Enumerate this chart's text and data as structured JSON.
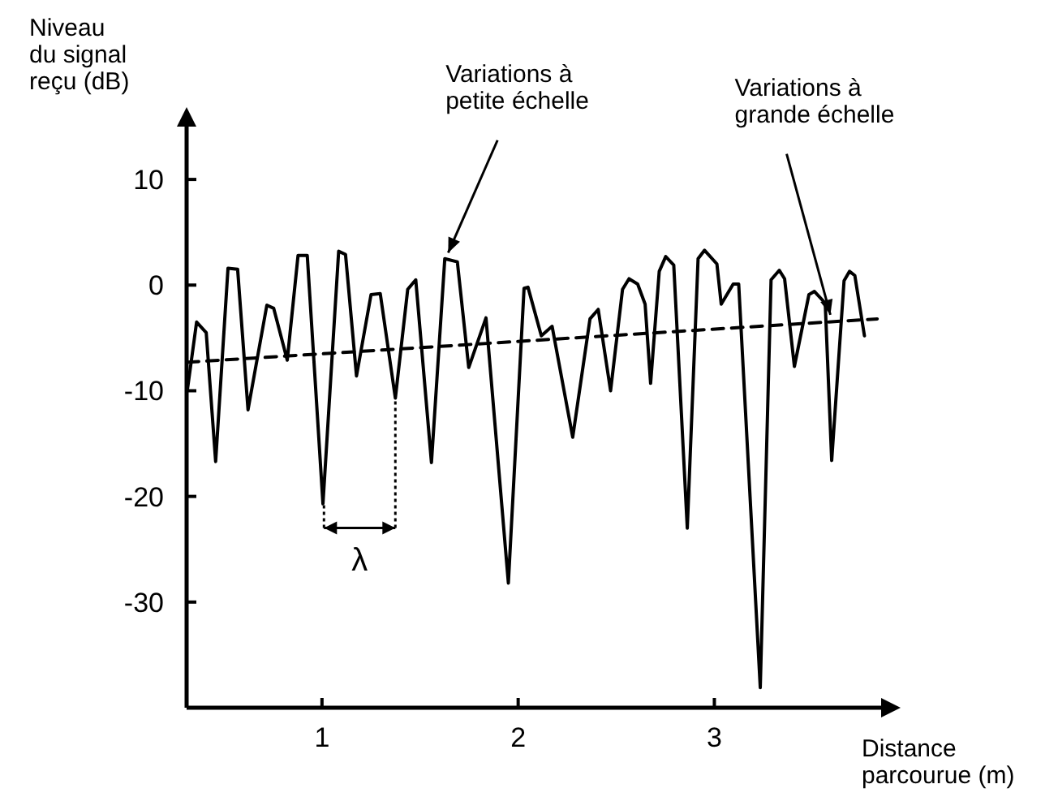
{
  "chart_data": {
    "type": "line",
    "xlabel": "Distance\nparcourue (m)",
    "ylabel": "Niveau\ndu signal\nreçu (dB)",
    "xlim": [
      0.31,
      3.85
    ],
    "ylim": [
      -40,
      15
    ],
    "xticks": [
      1,
      2,
      3
    ],
    "yticks": [
      10,
      0,
      -10,
      -20,
      -30
    ],
    "grid": false,
    "marker": "none",
    "series": [
      {
        "color": "#000000",
        "line_style": "solid",
        "x": [
          0.314,
          0.361,
          0.41,
          0.458,
          0.521,
          0.57,
          0.623,
          0.719,
          0.754,
          0.823,
          0.878,
          0.925,
          1.005,
          1.085,
          1.12,
          1.176,
          1.25,
          1.297,
          1.374,
          1.437,
          1.478,
          1.558,
          1.626,
          1.69,
          1.748,
          1.836,
          1.95,
          2.03,
          2.05,
          2.118,
          2.173,
          2.278,
          2.366,
          2.408,
          2.471,
          2.532,
          2.565,
          2.609,
          2.647,
          2.675,
          2.719,
          2.752,
          2.793,
          2.862,
          2.917,
          2.95,
          3.013,
          3.035,
          3.096,
          3.124,
          3.234,
          3.289,
          3.331,
          3.358,
          3.408,
          3.482,
          3.51,
          3.565,
          3.598,
          3.661,
          3.689,
          3.716,
          3.765
        ],
        "values": [
          -9.9,
          -3.5,
          -4.5,
          -16.7,
          1.6,
          1.5,
          -11.8,
          -1.9,
          -2.2,
          -7.1,
          2.8,
          2.8,
          -20.7,
          3.2,
          2.9,
          -8.6,
          -0.9,
          -0.8,
          -10.7,
          -0.4,
          0.5,
          -16.8,
          2.5,
          2.2,
          -7.8,
          -3.1,
          -28.2,
          -0.3,
          -0.2,
          -4.8,
          -3.9,
          -14.4,
          -3.2,
          -2.3,
          -10,
          -0.4,
          0.6,
          0.1,
          -1.8,
          -9.3,
          1.3,
          2.7,
          1.9,
          -23,
          2.5,
          3.3,
          2,
          -1.8,
          0.1,
          0.1,
          -38.1,
          0.5,
          1.4,
          0.6,
          -7.7,
          -0.9,
          -0.6,
          -1.7,
          -16.6,
          0.4,
          1.3,
          0.9,
          -4.8
        ]
      },
      {
        "color": "#000000",
        "line_style": "dashed",
        "x": [
          0.314,
          3.83
        ],
        "values": [
          -7.3,
          -3.2
        ]
      }
    ],
    "annotations": [
      {
        "text": "Variations à\npetite échelle",
        "x": 1.63,
        "y": 2.5
      },
      {
        "text": "Variations à\ngrande échelle",
        "x": 3.6,
        "y": -3.4
      },
      {
        "text": "λ",
        "x": 1.374,
        "y": -10.7
      }
    ]
  }
}
